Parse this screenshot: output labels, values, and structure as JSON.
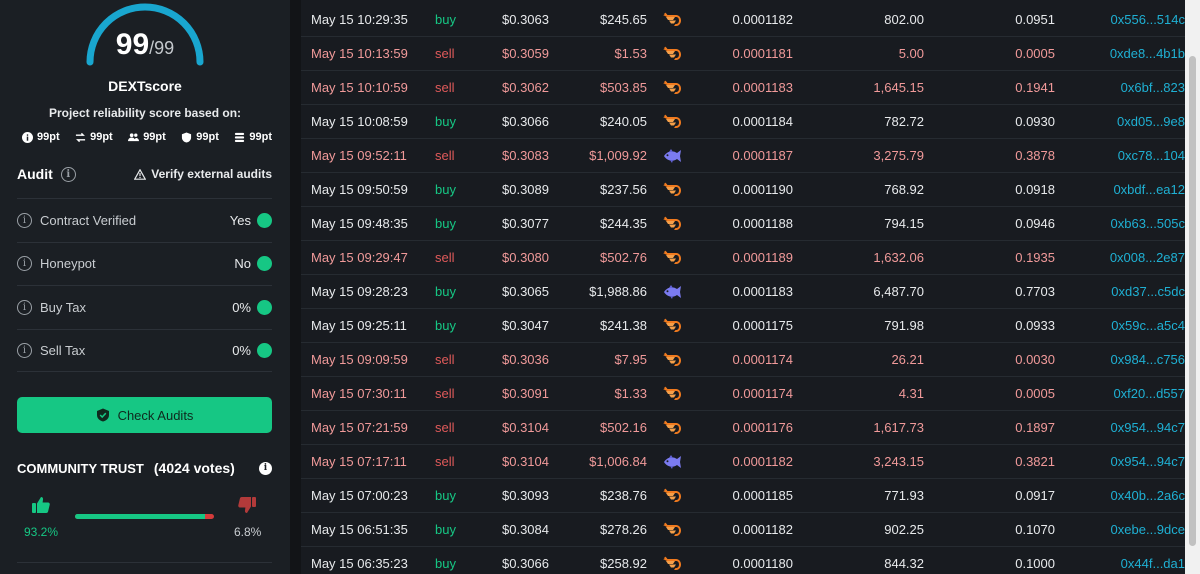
{
  "score": {
    "value": "99",
    "max": "/99",
    "title": "DEXTscore",
    "subtitle": "Project reliability score based on:"
  },
  "score_points": [
    {
      "icon": "info-icon",
      "label": "99pt"
    },
    {
      "icon": "swap-icon",
      "label": "99pt"
    },
    {
      "icon": "users-icon",
      "label": "99pt"
    },
    {
      "icon": "shield-icon",
      "label": "99pt"
    },
    {
      "icon": "coins-icon",
      "label": "99pt"
    }
  ],
  "audit": {
    "title": "Audit",
    "verify_label": "Verify external audits",
    "rows": [
      {
        "label": "Contract Verified",
        "value": "Yes"
      },
      {
        "label": "Honeypot",
        "value": "No"
      },
      {
        "label": "Buy Tax",
        "value": "0%"
      },
      {
        "label": "Sell Tax",
        "value": "0%"
      }
    ],
    "check_button": "Check Audits"
  },
  "community": {
    "title": "COMMUNITY TRUST",
    "votes": "(4024 votes)",
    "up_pct": "93.2%",
    "down_pct": "6.8%",
    "up_fraction": 0.932
  },
  "colors": {
    "green": "#16c784",
    "red": "#e05a5a",
    "cyan": "#1fb0d3",
    "panel": "#1b1f24"
  },
  "trades": [
    {
      "date": "May 15 10:29:35",
      "type": "buy",
      "price": "$0.3063",
      "total": "$245.65",
      "icon": "shrimp-icon",
      "token_price": "0.0001182",
      "amount": "802.00",
      "quote": "0.0951",
      "maker": "0x556...514c"
    },
    {
      "date": "May 15 10:13:59",
      "type": "sell",
      "price": "$0.3059",
      "total": "$1.53",
      "icon": "shrimp-icon",
      "token_price": "0.0001181",
      "amount": "5.00",
      "quote": "0.0005",
      "maker": "0xde8...4b1b"
    },
    {
      "date": "May 15 10:10:59",
      "type": "sell",
      "price": "$0.3062",
      "total": "$503.85",
      "icon": "shrimp-icon",
      "token_price": "0.0001183",
      "amount": "1,645.15",
      "quote": "0.1941",
      "maker": "0x6bf...823"
    },
    {
      "date": "May 15 10:08:59",
      "type": "buy",
      "price": "$0.3066",
      "total": "$240.05",
      "icon": "shrimp-icon",
      "token_price": "0.0001184",
      "amount": "782.72",
      "quote": "0.0930",
      "maker": "0xd05...9e8"
    },
    {
      "date": "May 15 09:52:11",
      "type": "sell",
      "price": "$0.3083",
      "total": "$1,009.92",
      "icon": "fish-icon",
      "token_price": "0.0001187",
      "amount": "3,275.79",
      "quote": "0.3878",
      "maker": "0xc78...104"
    },
    {
      "date": "May 15 09:50:59",
      "type": "buy",
      "price": "$0.3089",
      "total": "$237.56",
      "icon": "shrimp-icon",
      "token_price": "0.0001190",
      "amount": "768.92",
      "quote": "0.0918",
      "maker": "0xbdf...ea12"
    },
    {
      "date": "May 15 09:48:35",
      "type": "buy",
      "price": "$0.3077",
      "total": "$244.35",
      "icon": "shrimp-icon",
      "token_price": "0.0001188",
      "amount": "794.15",
      "quote": "0.0946",
      "maker": "0xb63...505c"
    },
    {
      "date": "May 15 09:29:47",
      "type": "sell",
      "price": "$0.3080",
      "total": "$502.76",
      "icon": "shrimp-icon",
      "token_price": "0.0001189",
      "amount": "1,632.06",
      "quote": "0.1935",
      "maker": "0x008...2e87"
    },
    {
      "date": "May 15 09:28:23",
      "type": "buy",
      "price": "$0.3065",
      "total": "$1,988.86",
      "icon": "fish-icon",
      "token_price": "0.0001183",
      "amount": "6,487.70",
      "quote": "0.7703",
      "maker": "0xd37...c5dc"
    },
    {
      "date": "May 15 09:25:11",
      "type": "buy",
      "price": "$0.3047",
      "total": "$241.38",
      "icon": "shrimp-icon",
      "token_price": "0.0001175",
      "amount": "791.98",
      "quote": "0.0933",
      "maker": "0x59c...a5c4"
    },
    {
      "date": "May 15 09:09:59",
      "type": "sell",
      "price": "$0.3036",
      "total": "$7.95",
      "icon": "shrimp-icon",
      "token_price": "0.0001174",
      "amount": "26.21",
      "quote": "0.0030",
      "maker": "0x984...c756"
    },
    {
      "date": "May 15 07:30:11",
      "type": "sell",
      "price": "$0.3091",
      "total": "$1.33",
      "icon": "shrimp-icon",
      "token_price": "0.0001174",
      "amount": "4.31",
      "quote": "0.0005",
      "maker": "0xf20...d557"
    },
    {
      "date": "May 15 07:21:59",
      "type": "sell",
      "price": "$0.3104",
      "total": "$502.16",
      "icon": "shrimp-icon",
      "token_price": "0.0001176",
      "amount": "1,617.73",
      "quote": "0.1897",
      "maker": "0x954...94c7"
    },
    {
      "date": "May 15 07:17:11",
      "type": "sell",
      "price": "$0.3104",
      "total": "$1,006.84",
      "icon": "fish-icon",
      "token_price": "0.0001182",
      "amount": "3,243.15",
      "quote": "0.3821",
      "maker": "0x954...94c7"
    },
    {
      "date": "May 15 07:00:23",
      "type": "buy",
      "price": "$0.3093",
      "total": "$238.76",
      "icon": "shrimp-icon",
      "token_price": "0.0001185",
      "amount": "771.93",
      "quote": "0.0917",
      "maker": "0x40b...2a6c"
    },
    {
      "date": "May 15 06:51:35",
      "type": "buy",
      "price": "$0.3084",
      "total": "$278.26",
      "icon": "shrimp-icon",
      "token_price": "0.0001182",
      "amount": "902.25",
      "quote": "0.1070",
      "maker": "0xebe...9dce"
    },
    {
      "date": "May 15 06:35:23",
      "type": "buy",
      "price": "$0.3066",
      "total": "$258.92",
      "icon": "shrimp-icon",
      "token_price": "0.0001180",
      "amount": "844.32",
      "quote": "0.1000",
      "maker": "0x44f...da1"
    }
  ]
}
